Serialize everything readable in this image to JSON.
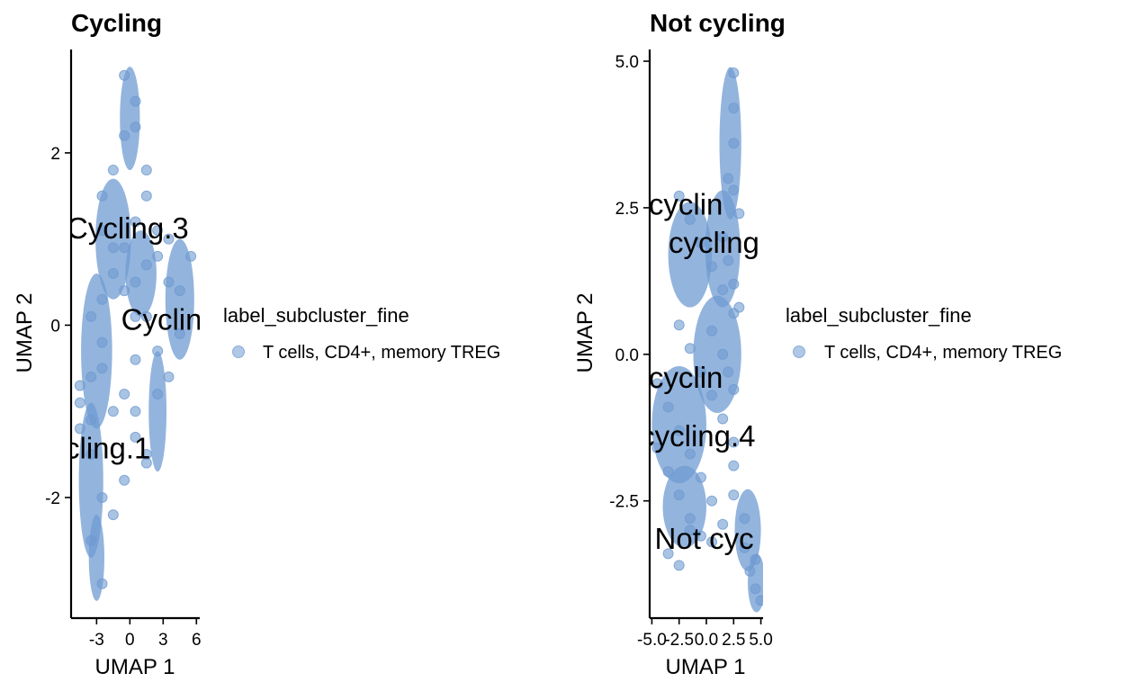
{
  "colors": {
    "point": "#6f9bd1"
  },
  "legend": {
    "title": "label_subcluster_fine",
    "item": "T cells, CD4+, memory TREG"
  },
  "chart_data": [
    {
      "type": "scatter",
      "title": "Cycling",
      "xlabel": "UMAP 1",
      "ylabel": "UMAP 2",
      "xlim": [
        -5.3,
        6.3
      ],
      "ylim": [
        -3.4,
        3.2
      ],
      "xticks": [
        -3,
        0,
        3,
        6
      ],
      "xtick_labels": [
        "-3",
        "0",
        "3",
        "6"
      ],
      "yticks": [
        2,
        0,
        -2
      ],
      "ytick_labels": [
        "2",
        "0",
        "-2"
      ],
      "series": [
        {
          "x": [
            -4.5,
            -3.5,
            -2.5,
            -2.5,
            -1.5,
            -0.5,
            0.5,
            0.5,
            1.5,
            2.5,
            3.5,
            4.5,
            5.5,
            -2.5,
            -1.5,
            -0.5,
            0.5,
            1.5,
            2.5,
            3.5,
            -3.5,
            -2.5,
            -1.5,
            -0.5,
            0.5,
            1.5,
            2.5,
            -3.5,
            -2.5,
            -1.5,
            -0.5,
            0.5,
            1.5,
            -0.5,
            0.5,
            1.5,
            -4.5,
            -3.5,
            -2.5,
            -4.5,
            -3.5,
            -2.5,
            -1.5,
            0.5,
            2.5,
            3.5,
            4.5,
            -0.5,
            0.5,
            1.5
          ],
          "y": [
            -0.9,
            -0.6,
            -0.2,
            0.3,
            0.6,
            0.9,
            1.2,
            0.5,
            0.7,
            0.8,
            0.5,
            0.4,
            0.8,
            1.5,
            1.8,
            2.2,
            2.6,
            1.5,
            1.1,
            1.0,
            0.1,
            -0.5,
            -1.0,
            -0.8,
            -1.3,
            -1.5,
            -0.8,
            -1.5,
            -2.0,
            -2.2,
            -1.8,
            -0.4,
            0.1,
            2.9,
            2.3,
            1.8,
            -1.2,
            -2.5,
            -3.0,
            -0.7,
            -1.1,
            1.1,
            0.9,
            0.1,
            -0.3,
            -0.6,
            -0.1,
            0.4,
            -1.0,
            -1.6
          ]
        }
      ],
      "annotations": [
        {
          "text": "Cycling.3",
          "x": -0.2,
          "y": 1.12
        },
        {
          "text": "Cycling",
          "x": 3.6,
          "y": 0.06
        },
        {
          "text": "cling.1",
          "x": -2.0,
          "y": -1.43
        }
      ]
    },
    {
      "type": "scatter",
      "title": "Not cycling",
      "xlabel": "UMAP 1",
      "ylabel": "UMAP 2",
      "xlim": [
        -5.2,
        5.2
      ],
      "ylim": [
        -4.5,
        5.2
      ],
      "xticks": [
        -5.0,
        -2.5,
        0.0,
        2.5,
        5.0
      ],
      "xtick_labels": [
        "-5.0",
        "-2.5",
        "0.0",
        "2.5",
        "5.0"
      ],
      "yticks": [
        5.0,
        2.5,
        0.0,
        -2.5
      ],
      "ytick_labels": [
        "5.0",
        "2.5",
        "0.0",
        "-2.5"
      ],
      "series": [
        {
          "x": [
            2.5,
            2.5,
            2.5,
            2.0,
            2.5,
            3.0,
            1.5,
            2.0,
            2.5,
            3.0,
            0.5,
            1.5,
            2.0,
            2.5,
            -2.5,
            -1.5,
            -0.5,
            0.5,
            1.5,
            2.5,
            -2.5,
            -1.5,
            -0.5,
            0.5,
            1.5,
            2.5,
            -4.5,
            -3.5,
            -2.5,
            -1.5,
            -0.5,
            0.5,
            1.5,
            2.5,
            -4.5,
            -3.5,
            -2.5,
            -1.5,
            -0.5,
            0.5,
            2.5,
            3.5,
            -3.5,
            -2.5,
            -1.5,
            3.5,
            4.0,
            4.5,
            5.0,
            4.5
          ],
          "y": [
            4.8,
            4.2,
            3.6,
            3.0,
            2.8,
            2.4,
            2.0,
            1.6,
            1.2,
            0.8,
            0.4,
            0.0,
            -0.3,
            -0.6,
            2.7,
            2.3,
            1.9,
            1.5,
            1.1,
            0.7,
            0.5,
            0.1,
            -0.3,
            -0.7,
            -1.1,
            -1.5,
            -0.5,
            -0.9,
            -1.3,
            -1.7,
            -2.1,
            -2.5,
            -2.9,
            -1.9,
            -1.6,
            -2.0,
            -2.4,
            -2.8,
            -3.1,
            -3.2,
            -2.4,
            -2.8,
            -3.4,
            -3.6,
            -3.0,
            -3.3,
            -3.7,
            -4.0,
            -4.2,
            -3.5
          ]
        }
      ],
      "annotations": [
        {
          "text": "ot cyclin",
          "x": -3.4,
          "y": 2.55
        },
        {
          "text": "cycling",
          "x": 0.7,
          "y": 1.9
        },
        {
          "text": "ot cyclin",
          "x": -3.4,
          "y": -0.4
        },
        {
          "text": "cycling.4",
          "x": -0.8,
          "y": -1.4
        },
        {
          "text": "Not cyc",
          "x": -0.2,
          "y": -3.15
        }
      ]
    }
  ]
}
